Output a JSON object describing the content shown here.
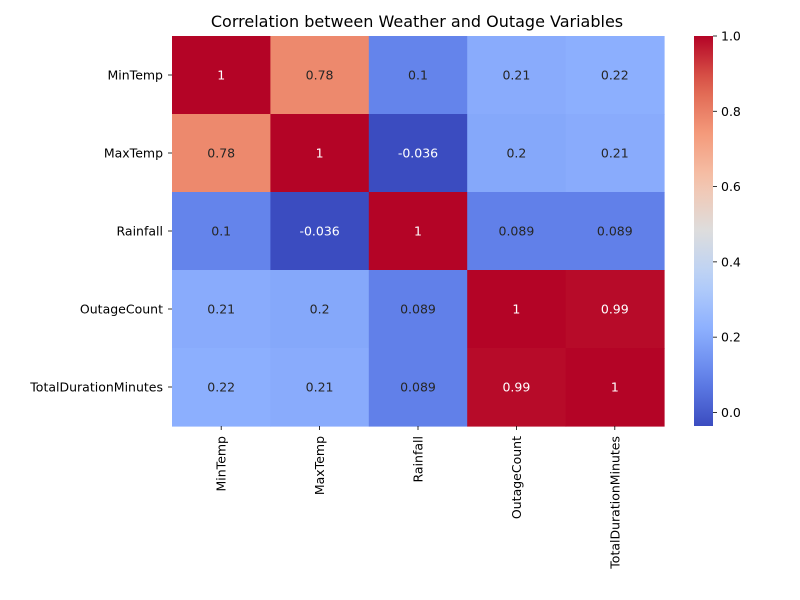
{
  "chart_data": {
    "type": "heatmap",
    "title": "Correlation between Weather and Outage Variables",
    "xlabel": "",
    "ylabel": "",
    "rows": [
      "MinTemp",
      "MaxTemp",
      "Rainfall",
      "OutageCount",
      "TotalDurationMinutes"
    ],
    "columns": [
      "MinTemp",
      "MaxTemp",
      "Rainfall",
      "OutageCount",
      "TotalDurationMinutes"
    ],
    "values": [
      [
        1,
        0.78,
        0.1,
        0.21,
        0.22
      ],
      [
        0.78,
        1,
        -0.036,
        0.2,
        0.21
      ],
      [
        0.1,
        -0.036,
        1,
        0.089,
        0.089
      ],
      [
        0.21,
        0.2,
        0.089,
        1,
        0.99
      ],
      [
        0.22,
        0.21,
        0.089,
        0.99,
        1
      ]
    ],
    "labels": [
      [
        "1",
        "0.78",
        "0.1",
        "0.21",
        "0.22"
      ],
      [
        "0.78",
        "1",
        "-0.036",
        "0.2",
        "0.21"
      ],
      [
        "0.1",
        "-0.036",
        "1",
        "0.089",
        "0.089"
      ],
      [
        "0.21",
        "0.2",
        "0.089",
        "1",
        "0.99"
      ],
      [
        "0.22",
        "0.21",
        "0.089",
        "0.99",
        "1"
      ]
    ],
    "colormap": "coolwarm",
    "vmin": -0.036,
    "vmax": 1,
    "colorbar": {
      "ticks": [
        0.0,
        0.2,
        0.4,
        0.6,
        0.8,
        1.0
      ],
      "tick_labels": [
        "0.0",
        "0.2",
        "0.4",
        "0.6",
        "0.8",
        "1.0"
      ],
      "placement": "right"
    },
    "annotated": true,
    "grid": false
  }
}
